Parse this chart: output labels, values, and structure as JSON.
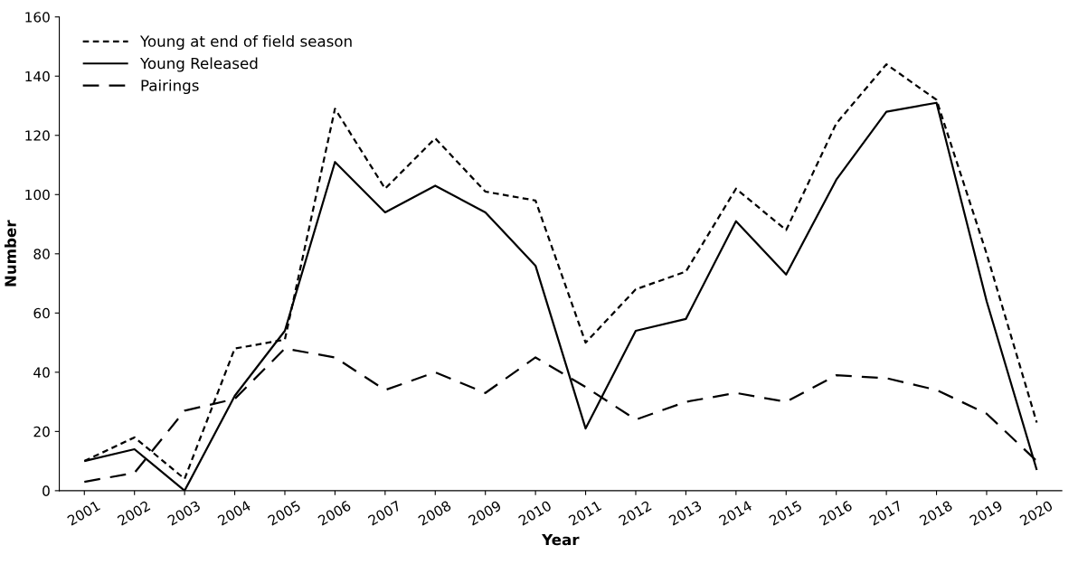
{
  "chart_data": {
    "type": "line",
    "xlabel": "Year",
    "ylabel": "Number",
    "categories": [
      "2001",
      "2002",
      "2003",
      "2004",
      "2005",
      "2006",
      "2007",
      "2008",
      "2009",
      "2010",
      "2011",
      "2012",
      "2013",
      "2014",
      "2015",
      "2016",
      "2017",
      "2018",
      "2019",
      "2020"
    ],
    "series": [
      {
        "name": "Young at end of field season",
        "color": "#000000",
        "line_style": "dotted",
        "values": [
          10,
          18,
          4,
          48,
          51,
          129,
          102,
          119,
          101,
          98,
          50,
          68,
          74,
          102,
          88,
          124,
          144,
          132,
          80,
          23
        ]
      },
      {
        "name": "Young Released",
        "color": "#000000",
        "line_style": "solid",
        "values": [
          10,
          14,
          0,
          32,
          54,
          111,
          94,
          103,
          94,
          76,
          21,
          54,
          58,
          91,
          73,
          105,
          128,
          131,
          64,
          7
        ]
      },
      {
        "name": "Pairings",
        "color": "#000000",
        "line_style": "dashed",
        "values": [
          3,
          6,
          27,
          31,
          48,
          45,
          34,
          40,
          33,
          45,
          35,
          24,
          30,
          33,
          30,
          39,
          38,
          34,
          26,
          10
        ]
      }
    ],
    "ylim": [
      0,
      160
    ],
    "yticks": [
      0,
      20,
      40,
      60,
      80,
      100,
      120,
      140,
      160
    ],
    "grid": false,
    "legend": "top left"
  }
}
